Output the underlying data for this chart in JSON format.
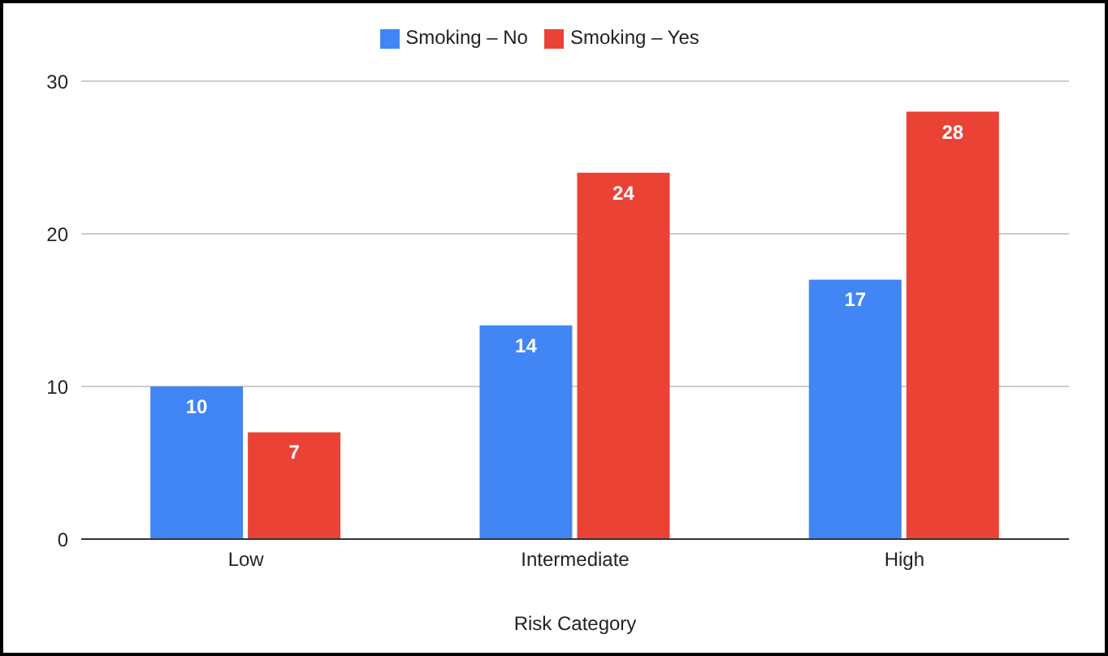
{
  "chart_data": {
    "type": "bar",
    "xlabel": "Risk Category",
    "categories": [
      "Low",
      "Intermediate",
      "High"
    ],
    "series": [
      {
        "name": "Smoking – No",
        "color": "#4285f4",
        "values": [
          10,
          14,
          17
        ]
      },
      {
        "name": "Smoking – Yes",
        "color": "#ea4335",
        "values": [
          7,
          24,
          28
        ]
      }
    ],
    "ylim": [
      0,
      30
    ],
    "yticks": [
      0,
      10,
      20,
      30
    ],
    "grid": "y",
    "legend": "top",
    "data_labels": true
  }
}
